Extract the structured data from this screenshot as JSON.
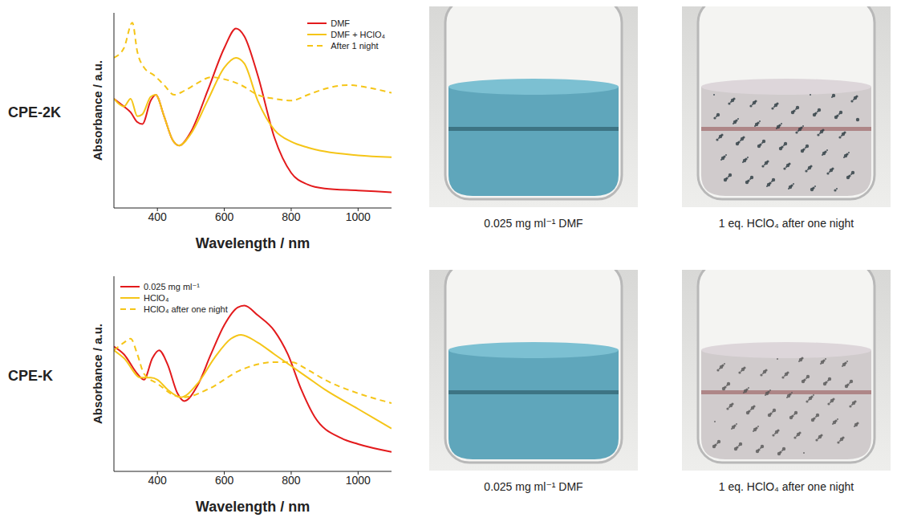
{
  "chart_data": [
    {
      "type": "line",
      "title": "CPE-2K",
      "x_label": "Wavelength / nm",
      "y_label": "Absorbance / a.u.",
      "xlim": [
        270,
        1100
      ],
      "xticks": [
        400,
        600,
        800,
        1000
      ],
      "ylim": [
        0,
        1
      ],
      "tick_labels": "x",
      "legend": "upper right",
      "series": [
        {
          "name": "DMF",
          "color": "#e31a1c",
          "line_style": "solid",
          "x": [
            270,
            300,
            320,
            340,
            355,
            380,
            395,
            420,
            445,
            465,
            500,
            550,
            600,
            635,
            660,
            700,
            750,
            800,
            850,
            900,
            1000,
            1100
          ],
          "values": [
            0.56,
            0.52,
            0.49,
            0.44,
            0.43,
            0.55,
            0.58,
            0.47,
            0.35,
            0.32,
            0.39,
            0.6,
            0.82,
            0.92,
            0.88,
            0.68,
            0.36,
            0.18,
            0.12,
            0.1,
            0.09,
            0.08
          ]
        },
        {
          "name": "DMF + HClO₄",
          "color": "#f5c518",
          "line_style": "solid",
          "x": [
            270,
            300,
            320,
            340,
            355,
            380,
            395,
            420,
            445,
            465,
            500,
            550,
            600,
            635,
            660,
            700,
            750,
            800,
            850,
            900,
            1000,
            1100
          ],
          "values": [
            0.56,
            0.52,
            0.56,
            0.47,
            0.48,
            0.57,
            0.58,
            0.47,
            0.35,
            0.32,
            0.38,
            0.55,
            0.72,
            0.77,
            0.74,
            0.55,
            0.4,
            0.34,
            0.31,
            0.29,
            0.27,
            0.26
          ]
        },
        {
          "name": "After 1 night",
          "color": "#f5c518",
          "line_style": "dashed",
          "x": [
            270,
            300,
            325,
            340,
            360,
            390,
            420,
            450,
            480,
            520,
            560,
            600,
            650,
            700,
            750,
            800,
            850,
            900,
            970,
            1050,
            1100
          ],
          "values": [
            0.77,
            0.82,
            0.95,
            0.8,
            0.72,
            0.68,
            0.63,
            0.58,
            0.6,
            0.64,
            0.67,
            0.66,
            0.63,
            0.58,
            0.56,
            0.55,
            0.58,
            0.61,
            0.63,
            0.61,
            0.59
          ]
        }
      ]
    },
    {
      "type": "line",
      "title": "CPE-K",
      "x_label": "Wavelength / nm",
      "y_label": "Absorbance / a.u.",
      "xlim": [
        270,
        1100
      ],
      "xticks": [
        400,
        600,
        800,
        1000
      ],
      "ylim": [
        0,
        1
      ],
      "tick_labels": "x",
      "legend": "upper left",
      "series": [
        {
          "name": "0.025 mg ml⁻¹",
          "color": "#e31a1c",
          "line_style": "solid",
          "x": [
            270,
            300,
            340,
            360,
            385,
            405,
            430,
            460,
            480,
            520,
            560,
            600,
            640,
            660,
            700,
            750,
            790,
            830,
            870,
            950,
            1000,
            1100
          ],
          "values": [
            0.64,
            0.6,
            0.5,
            0.47,
            0.58,
            0.62,
            0.55,
            0.4,
            0.36,
            0.44,
            0.6,
            0.75,
            0.84,
            0.85,
            0.8,
            0.72,
            0.6,
            0.42,
            0.28,
            0.17,
            0.14,
            0.1
          ]
        },
        {
          "name": "HClO₄",
          "color": "#f5c518",
          "line_style": "solid",
          "x": [
            270,
            300,
            350,
            380,
            400,
            430,
            470,
            520,
            570,
            620,
            650,
            700,
            750,
            800,
            850,
            900,
            1000,
            1100
          ],
          "values": [
            0.62,
            0.58,
            0.48,
            0.48,
            0.47,
            0.42,
            0.38,
            0.45,
            0.58,
            0.68,
            0.7,
            0.66,
            0.6,
            0.54,
            0.48,
            0.42,
            0.32,
            0.22
          ]
        },
        {
          "name": "HClO₄ after one night",
          "color": "#f5c518",
          "line_style": "dashed",
          "x": [
            270,
            300,
            320,
            340,
            360,
            400,
            450,
            480,
            550,
            650,
            750,
            800,
            850,
            900,
            1000,
            1100
          ],
          "values": [
            0.62,
            0.66,
            0.68,
            0.6,
            0.5,
            0.45,
            0.39,
            0.38,
            0.42,
            0.52,
            0.56,
            0.56,
            0.52,
            0.47,
            0.4,
            0.35
          ]
        }
      ]
    }
  ],
  "photos": [
    [
      {
        "caption": "0.025 mg ml⁻¹ DMF"
      },
      {
        "caption": "1 eq. HClO₄ after one night"
      }
    ],
    [
      {
        "caption": "0.025 mg ml⁻¹ DMF"
      },
      {
        "caption": "1 eq. HClO₄ after one night"
      }
    ]
  ]
}
